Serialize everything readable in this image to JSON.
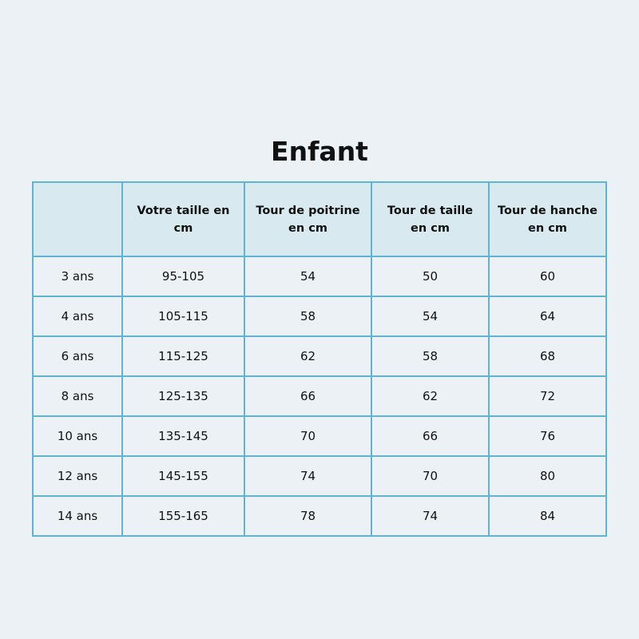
{
  "title": "Enfant",
  "headers": [
    "",
    "Votre taille en cm",
    "Tour de poitrine en cm",
    "Tour de taille en cm",
    "Tour de hanche en cm"
  ],
  "rows": [
    [
      "3 ans",
      "95-105",
      "54",
      "50",
      "60"
    ],
    [
      "4 ans",
      "105-115",
      "58",
      "54",
      "64"
    ],
    [
      "6 ans",
      "115-125",
      "62",
      "58",
      "68"
    ],
    [
      "8 ans",
      "125-135",
      "66",
      "62",
      "72"
    ],
    [
      "10 ans",
      "135-145",
      "70",
      "66",
      "76"
    ],
    [
      "12 ans",
      "145-155",
      "74",
      "70",
      "80"
    ],
    [
      "14 ans",
      "155-165",
      "78",
      "74",
      "84"
    ]
  ],
  "colors": {
    "background": "#ebf1f4",
    "header_background": "#d8eaef",
    "border": "#5fb4d6"
  }
}
